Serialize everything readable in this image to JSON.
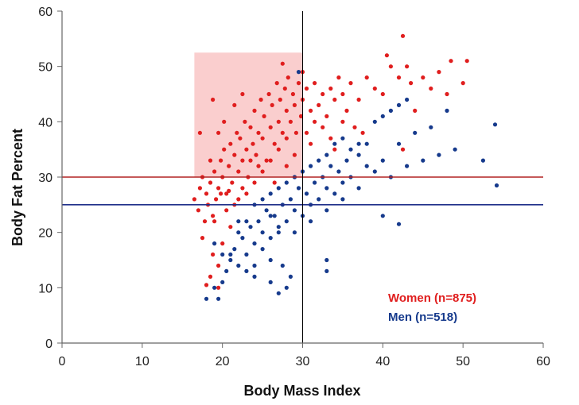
{
  "chart_data": {
    "type": "scatter",
    "title": "",
    "xlabel": "Body Mass Index",
    "ylabel": "Body Fat Percent",
    "xlim": [
      0,
      60
    ],
    "ylim": [
      0,
      60
    ],
    "x_ticks": [
      0,
      10,
      20,
      30,
      40,
      50,
      60
    ],
    "y_ticks": [
      0,
      10,
      20,
      30,
      40,
      50,
      60
    ],
    "x_tick_labels": [
      "0",
      "10",
      "20",
      "30",
      "40",
      "50",
      "60"
    ],
    "y_tick_labels": [
      "0",
      "10",
      "20",
      "30",
      "40",
      "50",
      "60"
    ],
    "grid": false,
    "legend_position": "bottom-right",
    "reference_lines": [
      {
        "orientation": "horizontal",
        "value": 30,
        "color": "#b22222"
      },
      {
        "orientation": "horizontal",
        "value": 25,
        "color": "#1f2f8a"
      },
      {
        "orientation": "vertical",
        "value": 30,
        "color": "#000000"
      }
    ],
    "shaded_region": {
      "x": [
        16.5,
        30
      ],
      "y": [
        30,
        52.5
      ],
      "color": "#f9c9c9"
    },
    "series": [
      {
        "name": "Women (n=875)",
        "color": "#e01e1e",
        "points": [
          [
            16.5,
            26
          ],
          [
            17,
            24
          ],
          [
            17.2,
            28
          ],
          [
            17.5,
            30
          ],
          [
            17.8,
            22
          ],
          [
            18,
            27
          ],
          [
            18.2,
            25
          ],
          [
            18.5,
            29
          ],
          [
            18.8,
            23
          ],
          [
            19,
            31
          ],
          [
            19.2,
            26
          ],
          [
            19.5,
            28
          ],
          [
            19.8,
            33
          ],
          [
            20,
            30
          ],
          [
            20.2,
            35
          ],
          [
            20.5,
            27
          ],
          [
            20.8,
            32
          ],
          [
            21,
            36
          ],
          [
            21.2,
            29
          ],
          [
            21.5,
            34
          ],
          [
            21.8,
            38
          ],
          [
            22,
            31
          ],
          [
            22.2,
            37
          ],
          [
            22.5,
            33
          ],
          [
            22.8,
            40
          ],
          [
            23,
            35
          ],
          [
            23.2,
            30
          ],
          [
            23.5,
            39
          ],
          [
            23.8,
            36
          ],
          [
            24,
            42
          ],
          [
            24.2,
            34
          ],
          [
            24.5,
            38
          ],
          [
            24.8,
            44
          ],
          [
            25,
            37
          ],
          [
            25.2,
            41
          ],
          [
            25.5,
            33
          ],
          [
            25.8,
            45
          ],
          [
            26,
            39
          ],
          [
            26.2,
            43
          ],
          [
            26.5,
            36
          ],
          [
            26.8,
            47
          ],
          [
            27,
            40
          ],
          [
            27.2,
            44
          ],
          [
            27.5,
            38
          ],
          [
            27.8,
            46
          ],
          [
            28,
            42
          ],
          [
            28.2,
            48
          ],
          [
            28.5,
            40
          ],
          [
            28.8,
            45
          ],
          [
            29,
            43
          ],
          [
            29.2,
            38
          ],
          [
            29.5,
            47
          ],
          [
            29.8,
            41
          ],
          [
            30,
            44
          ],
          [
            30.5,
            46
          ],
          [
            31,
            42
          ],
          [
            31.5,
            47
          ],
          [
            32,
            43
          ],
          [
            32.5,
            45
          ],
          [
            33,
            41
          ],
          [
            33.5,
            46
          ],
          [
            34,
            44
          ],
          [
            34.5,
            48
          ],
          [
            35,
            45
          ],
          [
            35.5,
            42
          ],
          [
            36,
            47
          ],
          [
            37,
            44
          ],
          [
            38,
            48
          ],
          [
            39,
            46
          ],
          [
            40,
            45
          ],
          [
            40.5,
            52
          ],
          [
            41,
            50
          ],
          [
            42,
            48
          ],
          [
            42.5,
            55.5
          ],
          [
            43,
            50
          ],
          [
            43.5,
            47
          ],
          [
            44,
            42
          ],
          [
            45,
            48
          ],
          [
            46,
            46
          ],
          [
            47,
            49
          ],
          [
            48,
            45
          ],
          [
            48.5,
            51
          ],
          [
            50,
            47
          ],
          [
            50.5,
            51
          ],
          [
            17.2,
            38
          ],
          [
            18.8,
            44
          ],
          [
            19.5,
            38
          ],
          [
            20.2,
            40
          ],
          [
            21.5,
            43
          ],
          [
            22.5,
            45
          ],
          [
            21,
            21
          ],
          [
            20,
            18
          ],
          [
            18.8,
            16
          ],
          [
            19.5,
            14
          ],
          [
            18.5,
            12
          ],
          [
            19.5,
            10
          ],
          [
            18,
            10.5
          ],
          [
            19,
            22
          ],
          [
            17.5,
            19
          ],
          [
            20.5,
            24
          ],
          [
            23,
            27
          ],
          [
            24,
            29
          ],
          [
            22,
            26
          ],
          [
            25,
            31
          ],
          [
            26,
            33
          ],
          [
            27,
            35
          ],
          [
            28,
            37
          ],
          [
            29,
            34
          ],
          [
            30.5,
            38
          ],
          [
            31,
            36
          ],
          [
            31.5,
            40
          ],
          [
            32.5,
            39
          ],
          [
            33.5,
            37
          ],
          [
            34,
            35
          ],
          [
            35,
            40
          ],
          [
            36.5,
            39
          ],
          [
            37.5,
            38
          ],
          [
            42.5,
            35
          ],
          [
            27.5,
            50.5
          ],
          [
            30,
            49
          ],
          [
            29,
            30
          ],
          [
            28,
            32
          ],
          [
            26.5,
            29
          ],
          [
            24.5,
            32
          ],
          [
            23.5,
            33
          ],
          [
            22.5,
            28
          ],
          [
            21.5,
            25
          ],
          [
            20.8,
            27.5
          ],
          [
            19.8,
            27
          ],
          [
            18.5,
            33
          ]
        ]
      },
      {
        "name": "Men (n=518)",
        "color": "#163a8c",
        "points": [
          [
            18,
            8
          ],
          [
            19.5,
            8
          ],
          [
            19,
            10
          ],
          [
            20,
            11
          ],
          [
            20.5,
            13
          ],
          [
            21,
            15
          ],
          [
            21.5,
            17
          ],
          [
            22,
            14
          ],
          [
            22.5,
            19
          ],
          [
            23,
            16
          ],
          [
            23.5,
            21
          ],
          [
            24,
            18
          ],
          [
            24.5,
            22
          ],
          [
            25,
            20
          ],
          [
            25.5,
            24
          ],
          [
            26,
            19
          ],
          [
            26.5,
            23
          ],
          [
            27,
            21
          ],
          [
            27.5,
            25
          ],
          [
            28,
            22
          ],
          [
            28.5,
            26
          ],
          [
            29,
            24
          ],
          [
            29.5,
            28
          ],
          [
            30,
            23
          ],
          [
            30.5,
            27
          ],
          [
            31,
            25
          ],
          [
            31.5,
            29
          ],
          [
            32,
            26
          ],
          [
            32.5,
            30
          ],
          [
            33,
            28
          ],
          [
            33.5,
            32
          ],
          [
            34,
            27
          ],
          [
            34.5,
            31
          ],
          [
            35,
            29
          ],
          [
            35.5,
            33
          ],
          [
            36,
            30
          ],
          [
            37,
            34
          ],
          [
            38,
            32
          ],
          [
            39,
            31
          ],
          [
            40,
            33
          ],
          [
            41,
            30
          ],
          [
            42,
            36
          ],
          [
            43,
            32
          ],
          [
            44,
            38
          ],
          [
            45,
            33
          ],
          [
            46,
            39
          ],
          [
            47,
            34
          ],
          [
            48,
            42
          ],
          [
            49,
            35
          ],
          [
            52.5,
            33
          ],
          [
            54,
            39.5
          ],
          [
            54.2,
            28.5
          ],
          [
            42,
            21.5
          ],
          [
            40,
            23
          ],
          [
            33,
            15
          ],
          [
            33,
            13
          ],
          [
            28,
            10
          ],
          [
            26,
            11
          ],
          [
            24,
            12
          ],
          [
            23,
            13
          ],
          [
            21,
            16
          ],
          [
            22,
            20
          ],
          [
            23,
            22
          ],
          [
            24,
            25
          ],
          [
            25,
            26
          ],
          [
            26,
            27
          ],
          [
            27,
            28
          ],
          [
            28,
            29
          ],
          [
            29,
            30
          ],
          [
            30,
            31
          ],
          [
            31,
            32
          ],
          [
            32,
            33
          ],
          [
            33,
            34
          ],
          [
            34,
            36
          ],
          [
            35,
            37
          ],
          [
            36,
            35
          ],
          [
            37,
            36
          ],
          [
            38,
            36
          ],
          [
            39,
            40
          ],
          [
            40,
            41
          ],
          [
            41,
            42
          ],
          [
            42,
            43
          ],
          [
            43,
            44
          ],
          [
            29.5,
            49
          ],
          [
            27,
            20
          ],
          [
            25,
            17
          ],
          [
            26,
            15
          ],
          [
            27.5,
            14
          ],
          [
            28.5,
            12
          ],
          [
            27,
            9
          ],
          [
            19,
            18
          ],
          [
            20,
            16
          ],
          [
            22,
            22
          ],
          [
            24,
            14
          ],
          [
            26,
            23
          ],
          [
            29,
            20
          ],
          [
            31,
            22
          ],
          [
            33,
            24
          ],
          [
            35,
            26
          ],
          [
            37,
            28
          ]
        ]
      }
    ]
  }
}
